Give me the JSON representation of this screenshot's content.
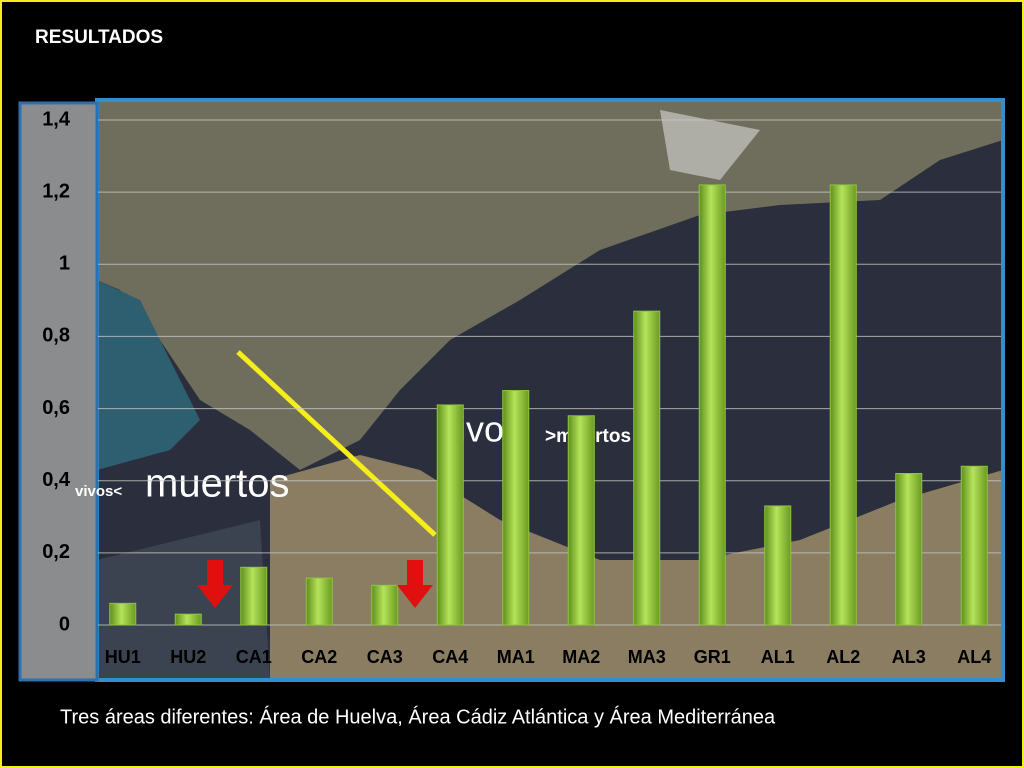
{
  "chart_data": {
    "type": "bar",
    "title": "RESULTADOS",
    "categories": [
      "HU1",
      "HU2",
      "CA1",
      "CA2",
      "CA3",
      "CA4",
      "MA1",
      "MA2",
      "MA3",
      "GR1",
      "AL1",
      "AL2",
      "AL3",
      "AL4"
    ],
    "values": [
      0.06,
      0.03,
      0.16,
      0.13,
      0.11,
      0.61,
      0.65,
      0.58,
      0.87,
      1.22,
      0.33,
      1.22,
      0.42,
      0.44
    ],
    "color": "#8dc63f",
    "ylim": [
      0,
      1.4
    ],
    "yticks": [
      0,
      {
        "value": 0.2,
        "label": "0,2"
      },
      {
        "value": 0.4,
        "label": "0,4"
      },
      {
        "value": 0.6,
        "label": "0,6"
      },
      {
        "value": 0.8,
        "label": "0,8"
      },
      1,
      {
        "value": 1.2,
        "label": "1,2"
      },
      {
        "value": 1.4,
        "label": "1,4"
      }
    ],
    "grid": true,
    "annotations": [
      "vivos<",
      "muertos",
      "vivos",
      ">muertos"
    ]
  },
  "footer": "Tres áreas diferentes: Área de Huelva, Área Cádiz Atlántica y Área Mediterránea"
}
